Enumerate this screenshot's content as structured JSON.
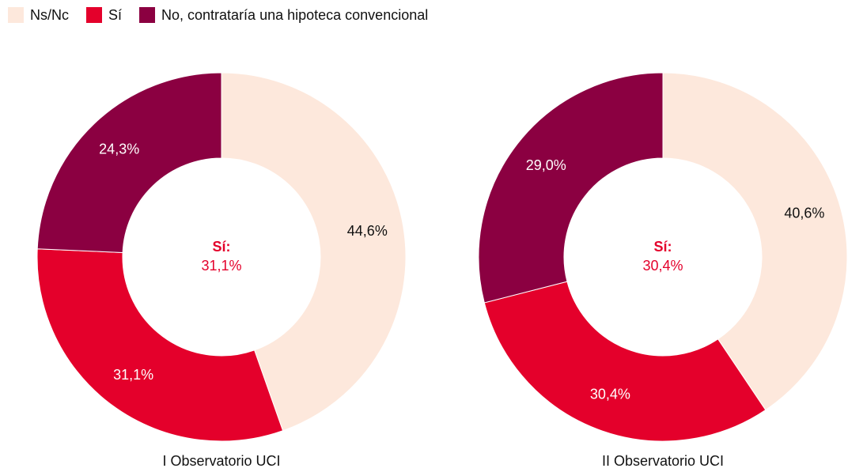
{
  "legend": {
    "entries": [
      "Ns/Nc",
      "Sí",
      "No, contrataría una hipoteca convencional"
    ],
    "colors": [
      "#fde8dc",
      "#e4002b",
      "#8b0041"
    ]
  },
  "chart_data": [
    {
      "type": "donut",
      "title": "I Observatorio UCI",
      "center_title": "Sí:",
      "categories": [
        "Ns/Nc",
        "Sí",
        "No, contrataría una hipoteca convencional"
      ],
      "values": [
        44.6,
        31.1,
        24.3
      ],
      "value_labels": [
        "44,6%",
        "31,1%",
        "24,3%"
      ],
      "colors": [
        "#fde8dc",
        "#e4002b",
        "#8b0041"
      ],
      "label_colors": [
        "#111111",
        "#ffffff",
        "#ffffff"
      ]
    },
    {
      "type": "donut",
      "title": "II Observatorio UCI",
      "center_title": "Sí:",
      "categories": [
        "Ns/Nc",
        "Sí",
        "No, contrataría una hipoteca convencional"
      ],
      "values": [
        40.6,
        30.4,
        29.0
      ],
      "value_labels": [
        "40,6%",
        "30,4%",
        "29,0%"
      ],
      "colors": [
        "#fde8dc",
        "#e4002b",
        "#8b0041"
      ],
      "label_colors": [
        "#111111",
        "#ffffff",
        "#ffffff"
      ]
    }
  ]
}
